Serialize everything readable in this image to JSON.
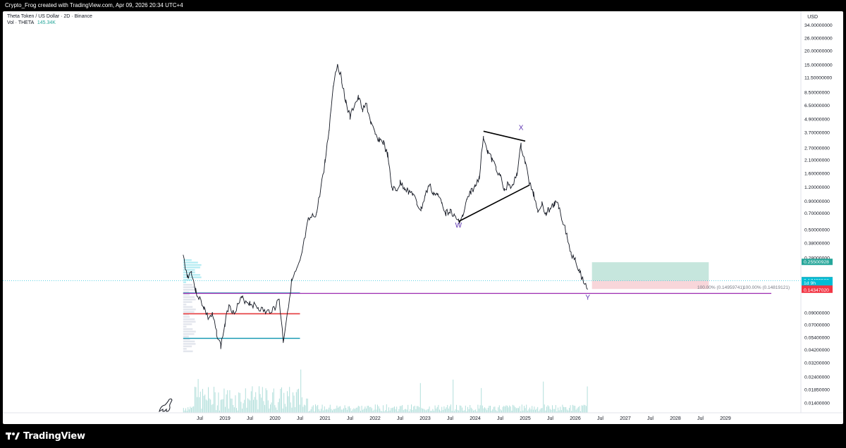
{
  "header": {
    "title": "Crypto_Frog created with TradingView.com, Apr 09, 2026 20:34 UTC+4"
  },
  "legend": {
    "symbol_line": "Theta Token / US Dollar · 2D · Binance",
    "vol_label": "Vol · THETA",
    "vol_value": "145.34K"
  },
  "footer": {
    "brand": "TradingView"
  },
  "colors": {
    "candle": "#131722",
    "cyan_line": "#1e9bb5",
    "red_line": "#e5393b",
    "purple_line": "#9c27b0",
    "volume": "#b2dfdb",
    "profit_zone": "#b8e0d4",
    "loss_zone": "#f7d2d6"
  },
  "chart_data": {
    "type": "line",
    "title": "Theta Token / US Dollar · 2D · Binance",
    "currency": "USD",
    "yscale": "log",
    "x_ticks": [
      "Jul",
      "2019",
      "Jul",
      "2020",
      "Jul",
      "2021",
      "Jul",
      "2022",
      "Jul",
      "2023",
      "Jul",
      "2024",
      "Jul",
      "2025",
      "Jul",
      "2026",
      "Jul",
      "2027",
      "Jul",
      "2028",
      "Jul",
      "2029"
    ],
    "y_ticks": [
      34.0,
      26.0,
      20.0,
      15.0,
      11.5,
      8.5,
      6.5,
      4.9,
      3.7,
      2.7,
      2.1,
      1.6,
      1.2,
      0.9,
      0.7,
      0.5,
      0.38,
      0.28,
      0.09,
      0.07,
      0.054,
      0.042,
      0.032,
      0.024,
      0.0185,
      0.014
    ],
    "y_tick_labels": [
      "34.00000000",
      "26.00000000",
      "20.00000000",
      "15.00000000",
      "11.50000000",
      "8.50000000",
      "6.50000000",
      "4.90000000",
      "3.70000000",
      "2.70000000",
      "2.10000000",
      "1.60000000",
      "1.20000000",
      "0.90000000",
      "0.70000000",
      "0.50000000",
      "0.38000000",
      "0.28000000",
      "0.09000000",
      "0.07000000",
      "0.05400000",
      "0.04200000",
      "0.03200000",
      "0.02400000",
      "0.01850000",
      "0.01400000"
    ],
    "price_series": [
      {
        "date": "2018-03",
        "price": 0.29
      },
      {
        "date": "2018-04",
        "price": 0.19
      },
      {
        "date": "2018-05",
        "price": 0.21
      },
      {
        "date": "2018-06",
        "price": 0.14
      },
      {
        "date": "2018-07",
        "price": 0.12
      },
      {
        "date": "2018-08",
        "price": 0.1
      },
      {
        "date": "2018-09",
        "price": 0.08
      },
      {
        "date": "2018-10",
        "price": 0.085
      },
      {
        "date": "2018-11",
        "price": 0.06
      },
      {
        "date": "2018-12",
        "price": 0.045
      },
      {
        "date": "2019-01",
        "price": 0.07
      },
      {
        "date": "2019-02",
        "price": 0.11
      },
      {
        "date": "2019-03",
        "price": 0.09
      },
      {
        "date": "2019-05",
        "price": 0.12
      },
      {
        "date": "2019-07",
        "price": 0.11
      },
      {
        "date": "2019-09",
        "price": 0.1
      },
      {
        "date": "2019-11",
        "price": 0.09
      },
      {
        "date": "2020-01",
        "price": 0.1
      },
      {
        "date": "2020-02",
        "price": 0.12
      },
      {
        "date": "2020-03",
        "price": 0.05
      },
      {
        "date": "2020-05",
        "price": 0.17
      },
      {
        "date": "2020-07",
        "price": 0.25
      },
      {
        "date": "2020-09",
        "price": 0.6
      },
      {
        "date": "2020-11",
        "price": 0.7
      },
      {
        "date": "2021-01",
        "price": 2.0
      },
      {
        "date": "2021-02",
        "price": 4.0
      },
      {
        "date": "2021-03",
        "price": 10.0
      },
      {
        "date": "2021-04",
        "price": 15.5
      },
      {
        "date": "2021-05",
        "price": 11.0
      },
      {
        "date": "2021-06",
        "price": 7.0
      },
      {
        "date": "2021-07",
        "price": 5.0
      },
      {
        "date": "2021-08",
        "price": 6.5
      },
      {
        "date": "2021-09",
        "price": 7.5
      },
      {
        "date": "2021-10",
        "price": 6.0
      },
      {
        "date": "2021-11",
        "price": 6.5
      },
      {
        "date": "2021-12",
        "price": 4.5
      },
      {
        "date": "2022-01",
        "price": 3.5
      },
      {
        "date": "2022-02",
        "price": 3.2
      },
      {
        "date": "2022-03",
        "price": 3.0
      },
      {
        "date": "2022-04",
        "price": 2.3
      },
      {
        "date": "2022-05",
        "price": 1.2
      },
      {
        "date": "2022-06",
        "price": 1.1
      },
      {
        "date": "2022-07",
        "price": 1.3
      },
      {
        "date": "2022-08",
        "price": 1.2
      },
      {
        "date": "2022-09",
        "price": 1.1
      },
      {
        "date": "2022-10",
        "price": 1.05
      },
      {
        "date": "2022-11",
        "price": 0.85
      },
      {
        "date": "2022-12",
        "price": 0.75
      },
      {
        "date": "2023-01",
        "price": 1.0
      },
      {
        "date": "2023-02",
        "price": 1.25
      },
      {
        "date": "2023-03",
        "price": 1.05
      },
      {
        "date": "2023-04",
        "price": 1.0
      },
      {
        "date": "2023-05",
        "price": 0.9
      },
      {
        "date": "2023-06",
        "price": 0.7
      },
      {
        "date": "2023-07",
        "price": 0.75
      },
      {
        "date": "2023-08",
        "price": 0.65
      },
      {
        "date": "2023-09",
        "price": 0.6
      },
      {
        "date": "2023-10",
        "price": 0.65
      },
      {
        "date": "2023-11",
        "price": 0.9
      },
      {
        "date": "2023-12",
        "price": 1.1
      },
      {
        "date": "2024-01",
        "price": 1.2
      },
      {
        "date": "2024-02",
        "price": 1.5
      },
      {
        "date": "2024-03",
        "price": 3.5
      },
      {
        "date": "2024-04",
        "price": 2.5
      },
      {
        "date": "2024-05",
        "price": 2.1
      },
      {
        "date": "2024-06",
        "price": 1.8
      },
      {
        "date": "2024-07",
        "price": 1.5
      },
      {
        "date": "2024-08",
        "price": 1.1
      },
      {
        "date": "2024-09",
        "price": 1.3
      },
      {
        "date": "2024-10",
        "price": 1.2
      },
      {
        "date": "2024-11",
        "price": 1.6
      },
      {
        "date": "2024-12",
        "price": 2.8
      },
      {
        "date": "2025-01",
        "price": 2.0
      },
      {
        "date": "2025-02",
        "price": 1.3
      },
      {
        "date": "2025-03",
        "price": 1.05
      },
      {
        "date": "2025-04",
        "price": 0.75
      },
      {
        "date": "2025-05",
        "price": 0.85
      },
      {
        "date": "2025-06",
        "price": 0.7
      },
      {
        "date": "2025-07",
        "price": 0.78
      },
      {
        "date": "2025-08",
        "price": 0.85
      },
      {
        "date": "2025-09",
        "price": 0.82
      },
      {
        "date": "2025-10",
        "price": 0.6
      },
      {
        "date": "2025-11",
        "price": 0.45
      },
      {
        "date": "2025-12",
        "price": 0.3
      },
      {
        "date": "2026-01",
        "price": 0.28
      },
      {
        "date": "2026-02",
        "price": 0.21
      },
      {
        "date": "2026-03",
        "price": 0.17
      },
      {
        "date": "2026-04",
        "price": 0.15
      }
    ],
    "horizontal_lines": [
      {
        "price": 0.135,
        "start": "2018-03",
        "end": "2020-07",
        "color": "cyan"
      },
      {
        "price": 0.088,
        "start": "2018-03",
        "end": "2020-07",
        "color": "red"
      },
      {
        "price": 0.053,
        "start": "2018-03",
        "end": "2020-07",
        "color": "cyan"
      },
      {
        "price": 0.134,
        "start": "2018-03",
        "end": "2029-12",
        "color": "purple"
      }
    ],
    "pattern_labels": [
      {
        "text": "W",
        "date": "2023-09",
        "price": 0.52
      },
      {
        "text": "X",
        "date": "2024-12",
        "price": 3.9
      },
      {
        "text": "Y",
        "date": "2026-04",
        "price": 0.118
      }
    ],
    "trendlines": [
      {
        "from_date": "2024-03",
        "from_price": 3.8,
        "to_date": "2025-01",
        "to_price": 3.1
      },
      {
        "from_date": "2023-09",
        "from_price": 0.59,
        "to_date": "2025-02",
        "to_price": 1.25
      }
    ],
    "position_tool": {
      "start": "2026-05",
      "end": "2028-09",
      "entry": 0.1743,
      "target": 0.255,
      "stop": 0.1468
    },
    "fib_text": [
      "100.00% (0.14959741)",
      "100.00% (0.14819121)"
    ],
    "price_labels": [
      {
        "text": "0.25500928",
        "price": 0.255,
        "color": "#26a69a"
      },
      {
        "text": "0.17498473",
        "price": 0.175,
        "color": "#787b86"
      },
      {
        "text": "0.17430568",
        "price": 0.1743,
        "color": "#00bcd4"
      },
      {
        "text": "1d 9h",
        "price": 0.165,
        "color": "#00bcd4"
      },
      {
        "text": "0.14679822",
        "price": 0.1468,
        "color": "#f23645"
      },
      {
        "text": "0.14347020",
        "price": 0.1435,
        "color": "#f23645"
      }
    ]
  }
}
